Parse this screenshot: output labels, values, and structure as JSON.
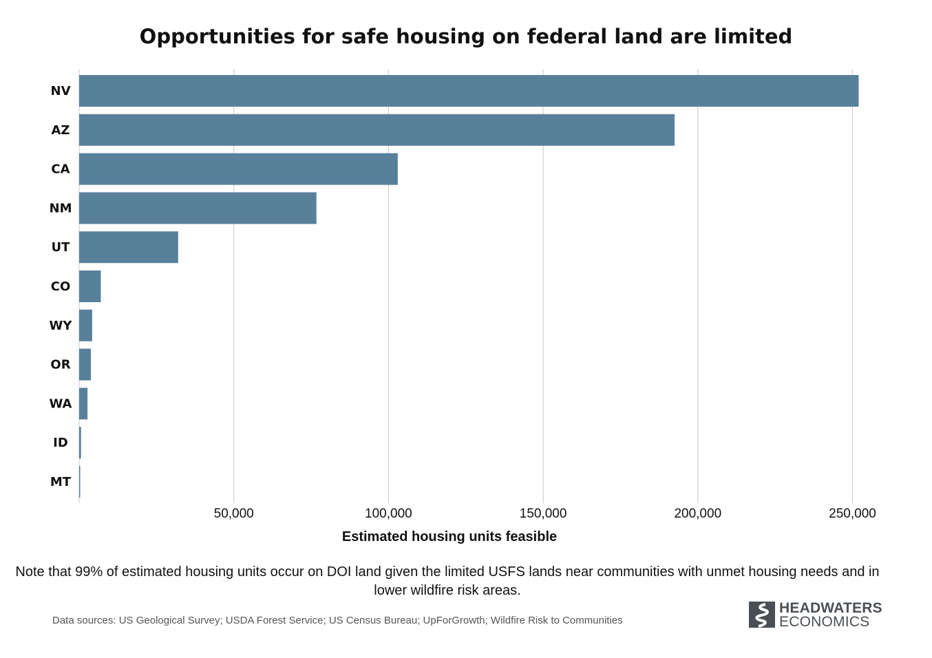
{
  "chart_data": {
    "type": "bar",
    "orientation": "horizontal",
    "title": "Opportunities for safe housing on federal land are limited",
    "xlabel": "Estimated housing units feasible",
    "ylabel": "",
    "categories": [
      "NV",
      "AZ",
      "CA",
      "NM",
      "UT",
      "CO",
      "WY",
      "OR",
      "WA",
      "ID",
      "MT"
    ],
    "values": [
      252000,
      192500,
      103000,
      76700,
      32000,
      7000,
      4200,
      3800,
      2700,
      600,
      200
    ],
    "xlim": [
      0,
      255000
    ],
    "xticks": [
      50000,
      100000,
      150000,
      200000,
      250000
    ],
    "xtick_labels": [
      "50,000",
      "100,000",
      "150,000",
      "200,000",
      "250,000"
    ],
    "grid": "vertical",
    "bar_color": "#58809b"
  },
  "note": "Note that 99% of estimated housing units occur on DOI land given the limited USFS lands near communities with unmet housing needs and in lower wildfire risk areas.",
  "sources": "Data sources: US Geological Survey; USDA Forest Service; US Census Bureau; UpForGrowth; Wildfire Risk to Communities",
  "logo": {
    "line1": "HEADWATERS",
    "line2": "ECONOMICS",
    "icon": "headwaters-river-logo-icon",
    "color": "#4a4f55"
  }
}
